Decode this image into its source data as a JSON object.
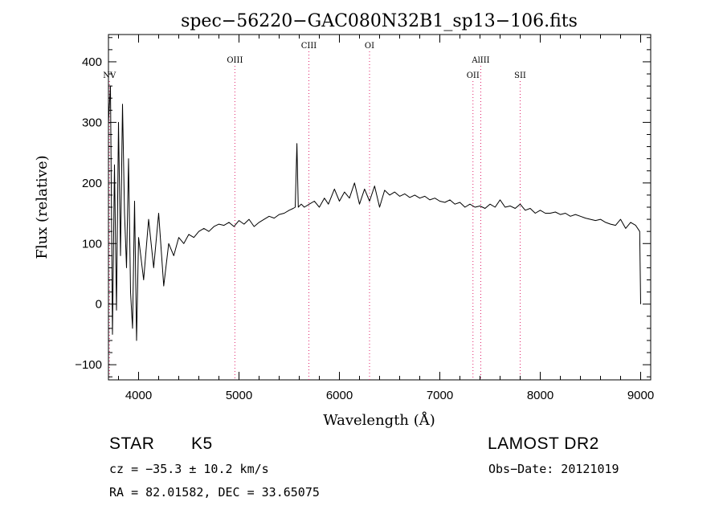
{
  "chart_data": {
    "type": "line",
    "title": "spec−56220−GAC080N32B1_sp13−106.fits",
    "xlabel": "Wavelength (Å)",
    "ylabel": "Flux (relative)",
    "xlim": [
      3700,
      9100
    ],
    "ylim": [
      -125,
      445
    ],
    "x_ticks": [
      4000,
      5000,
      6000,
      7000,
      8000,
      9000
    ],
    "y_ticks": [
      -100,
      0,
      100,
      200,
      300,
      400
    ],
    "x_tick_labels": [
      "4000",
      "5000",
      "6000",
      "7000",
      "8000",
      "9000"
    ],
    "y_tick_labels": [
      "−100",
      "0",
      "100",
      "200",
      "300",
      "400"
    ],
    "grid": false,
    "spectral_lines": [
      {
        "name": "NV",
        "wavelength": 3710,
        "row": 2
      },
      {
        "name": "OIII",
        "wavelength": 4959,
        "row": 1
      },
      {
        "name": "CIII",
        "wavelength": 5696,
        "row": 0
      },
      {
        "name": "OI",
        "wavelength": 6300,
        "row": 0
      },
      {
        "name": "AlIII",
        "wavelength": 7408,
        "row": 1
      },
      {
        "name": "OII",
        "wavelength": 7330,
        "row": 2
      },
      {
        "name": "SII",
        "wavelength": 7800,
        "row": 2
      }
    ],
    "series": [
      {
        "x": [
          3700,
          3720,
          3740,
          3760,
          3780,
          3800,
          3820,
          3840,
          3860,
          3880,
          3900,
          3920,
          3940,
          3960,
          3980,
          4000,
          4050,
          4100,
          4150,
          4200,
          4250,
          4300,
          4350,
          4400,
          4450,
          4500,
          4550,
          4600,
          4650,
          4700,
          4750,
          4800,
          4850,
          4900,
          4950,
          5000,
          5050,
          5100,
          5150,
          5200,
          5250,
          5300,
          5350,
          5400,
          5450,
          5500,
          5540,
          5560,
          5577,
          5590,
          5620,
          5650,
          5700,
          5750,
          5800,
          5850,
          5890,
          5950,
          6000,
          6050,
          6100,
          6150,
          6200,
          6250,
          6300,
          6350,
          6400,
          6450,
          6500,
          6550,
          6600,
          6650,
          6700,
          6750,
          6800,
          6850,
          6900,
          6950,
          7000,
          7050,
          7100,
          7150,
          7200,
          7250,
          7300,
          7350,
          7400,
          7450,
          7500,
          7550,
          7600,
          7650,
          7700,
          7750,
          7800,
          7850,
          7900,
          7950,
          8000,
          8050,
          8100,
          8150,
          8200,
          8250,
          8300,
          8350,
          8400,
          8450,
          8500,
          8550,
          8600,
          8650,
          8700,
          8750,
          8800,
          8850,
          8900,
          8950,
          8990,
          9000
        ],
        "y": [
          300,
          360,
          -50,
          230,
          -10,
          300,
          80,
          330,
          150,
          60,
          240,
          20,
          -40,
          170,
          -60,
          110,
          40,
          140,
          60,
          150,
          30,
          100,
          80,
          110,
          100,
          115,
          110,
          120,
          125,
          120,
          128,
          132,
          130,
          135,
          128,
          138,
          132,
          140,
          128,
          135,
          140,
          145,
          142,
          148,
          150,
          155,
          158,
          160,
          265,
          160,
          165,
          160,
          165,
          170,
          160,
          175,
          165,
          190,
          170,
          185,
          175,
          200,
          165,
          190,
          170,
          195,
          160,
          188,
          180,
          185,
          178,
          182,
          176,
          180,
          175,
          178,
          172,
          175,
          170,
          168,
          172,
          165,
          168,
          160,
          165,
          160,
          162,
          158,
          165,
          160,
          172,
          160,
          162,
          158,
          165,
          155,
          158,
          150,
          155,
          150,
          150,
          152,
          148,
          150,
          145,
          148,
          145,
          142,
          140,
          138,
          140,
          135,
          132,
          130,
          140,
          125,
          135,
          130,
          120,
          0
        ]
      }
    ]
  },
  "info": {
    "object_class": "STAR",
    "subclass": "K5",
    "survey": "LAMOST DR2",
    "cz": "cz = −35.3 ± 10.2 km/s",
    "obs_date": "Obs−Date: 20121019",
    "coords": "RA =  82.01582, DEC =  33.65075"
  }
}
